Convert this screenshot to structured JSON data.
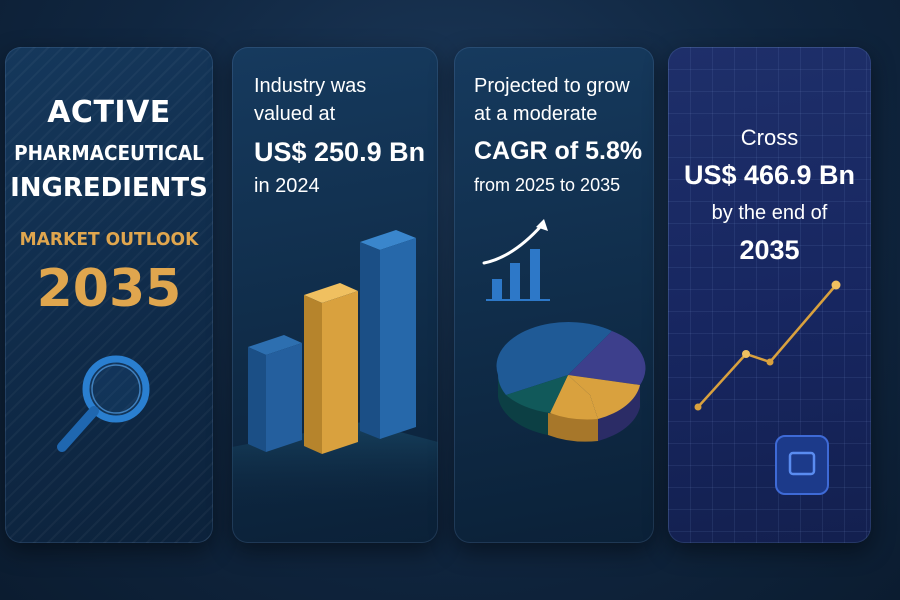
{
  "card1": {
    "title_line1": "ACTIVE",
    "title_line2": "PHARMACEUTICAL",
    "title_line3": "INGREDIENTS",
    "subtitle": "MARKET OUTLOOK",
    "year": "2035",
    "icon": "magnifying-glass-icon"
  },
  "card2": {
    "line1": "Industry was",
    "line2": "valued at",
    "value": "US$ 250.9 Bn",
    "line4": "in 2024",
    "graphic": "3d-bar-chart"
  },
  "card3": {
    "line1": "Projected to grow",
    "line2": "at a moderate",
    "cagr": "CAGR of 5.8%",
    "line4": "from 2025 to 2035",
    "graphics": [
      "growth-bar-icon",
      "3d-pie-chart"
    ]
  },
  "card4": {
    "line1": "Cross",
    "value": "US$ 466.9 Bn",
    "line3": "by the end of",
    "year": "2035",
    "graphics": [
      "line-chart",
      "chip-icon"
    ]
  },
  "colors": {
    "accent_gold": "#e0a64e",
    "bar_blue": "#1f5a96",
    "bar_gold": "#d9a13e",
    "pie_blue": "#1f5a96",
    "pie_purple": "#3d3f8c",
    "pie_teal": "#11595a",
    "pie_gold": "#d9a13e"
  }
}
